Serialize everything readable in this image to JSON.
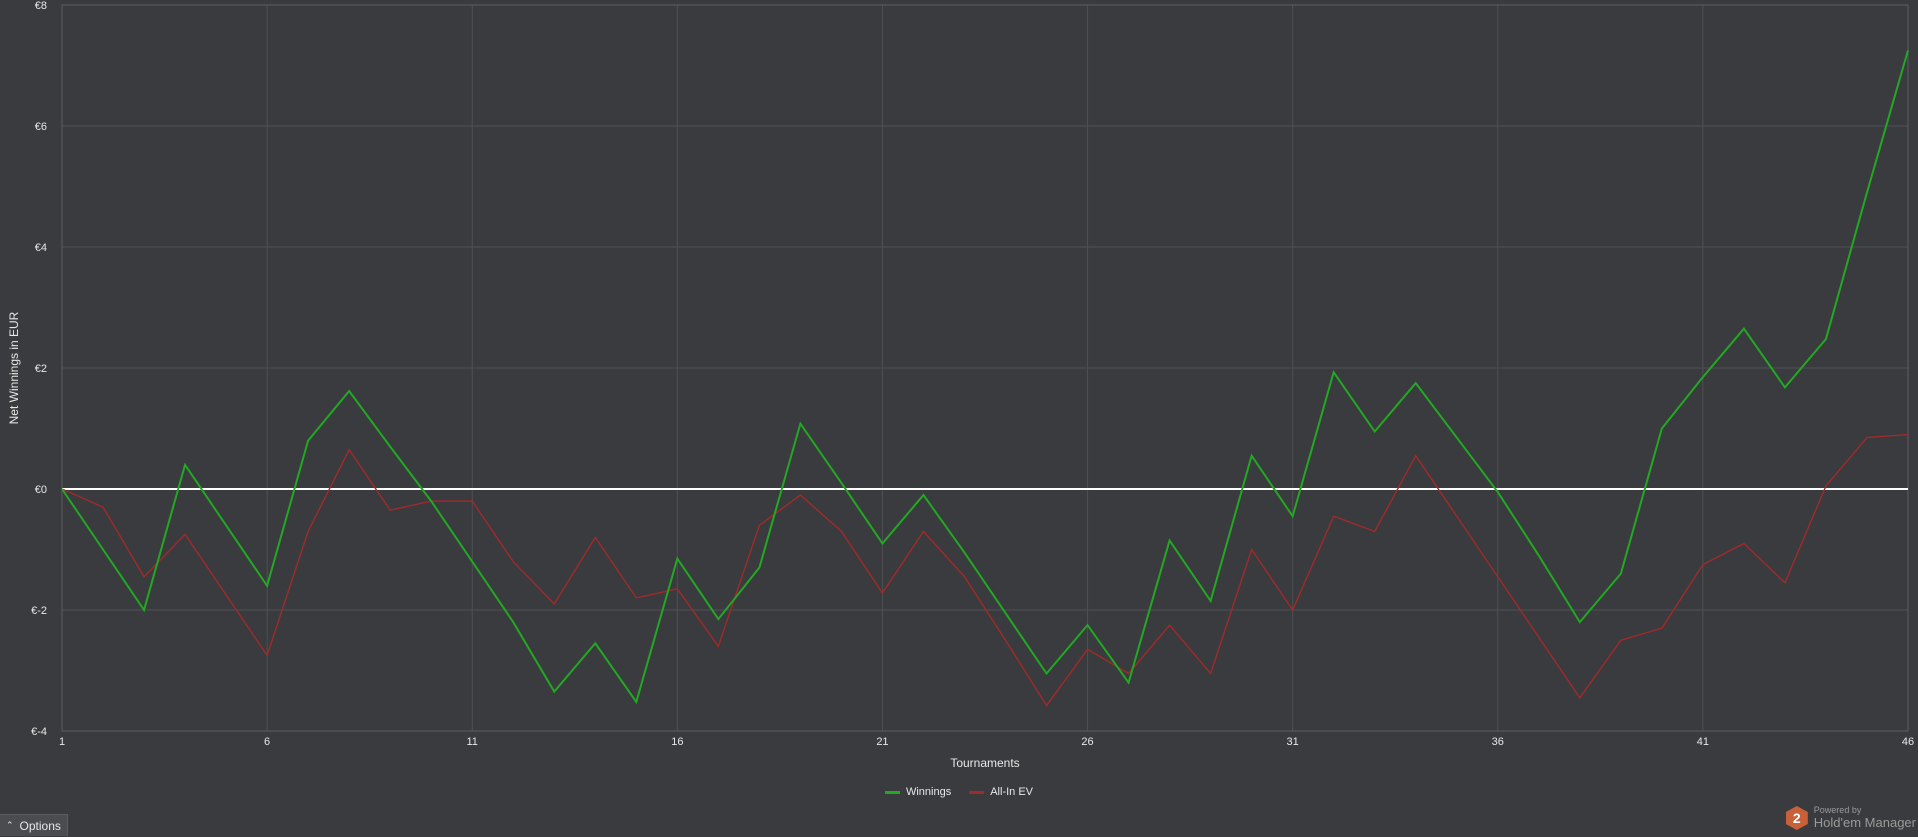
{
  "chart_data": {
    "type": "line",
    "xlabel": "Tournaments",
    "ylabel": "Net Winnings in EUR",
    "xlim": [
      1,
      46
    ],
    "ylim": [
      -4,
      8
    ],
    "x_ticks": [
      "1",
      "6",
      "11",
      "16",
      "21",
      "26",
      "31",
      "36",
      "41",
      "46"
    ],
    "y_ticks": [
      "€-4",
      "€-2",
      "€0",
      "€2",
      "€4",
      "€6",
      "€8"
    ],
    "grid": true,
    "legend_position": "bottom-center",
    "zero_line": 0,
    "x": [
      1,
      2,
      3,
      4,
      5,
      6,
      7,
      8,
      9,
      10,
      11,
      12,
      13,
      14,
      15,
      16,
      17,
      18,
      19,
      20,
      21,
      22,
      23,
      24,
      25,
      26,
      27,
      28,
      29,
      30,
      31,
      32,
      33,
      34,
      35,
      36,
      37,
      38,
      39,
      40,
      41,
      42,
      43,
      44,
      45,
      46
    ],
    "series": [
      {
        "name": "Winnings",
        "color": "#22a822",
        "values": [
          0,
          -1.0,
          -2.0,
          0.4,
          -0.6,
          -1.6,
          0.8,
          1.62,
          0.7,
          -0.2,
          -1.2,
          -2.2,
          -3.35,
          -2.55,
          -3.52,
          -1.15,
          -2.15,
          -1.3,
          1.08,
          0.1,
          -0.9,
          -0.1,
          -1.05,
          -2.05,
          -3.05,
          -2.25,
          -3.2,
          -0.85,
          -1.85,
          0.55,
          -0.45,
          1.93,
          0.95,
          1.75,
          0.85,
          -0.05,
          -1.1,
          -2.2,
          -1.4,
          1.0,
          1.85,
          2.65,
          1.68,
          2.48,
          4.9,
          7.25
        ]
      },
      {
        "name": "All-In EV",
        "color": "#a12a2a",
        "values": [
          0,
          -0.3,
          -1.45,
          -0.75,
          -1.75,
          -2.75,
          -0.7,
          0.65,
          -0.35,
          -0.2,
          -0.2,
          -1.2,
          -1.9,
          -0.8,
          -1.8,
          -1.65,
          -2.6,
          -0.6,
          -0.1,
          -0.7,
          -1.72,
          -0.7,
          -1.45,
          -2.5,
          -3.58,
          -2.65,
          -3.05,
          -2.25,
          -3.05,
          -1.0,
          -2.0,
          -0.45,
          -0.7,
          0.55,
          -0.45,
          -1.45,
          -2.45,
          -3.45,
          -2.5,
          -2.3,
          -1.25,
          -0.9,
          -1.55,
          0.05,
          0.85,
          0.9
        ]
      }
    ]
  },
  "options_label": "Options",
  "branding": {
    "powered_by": "Powered by",
    "name": "Hold'em Manager",
    "logo_number": "2"
  }
}
